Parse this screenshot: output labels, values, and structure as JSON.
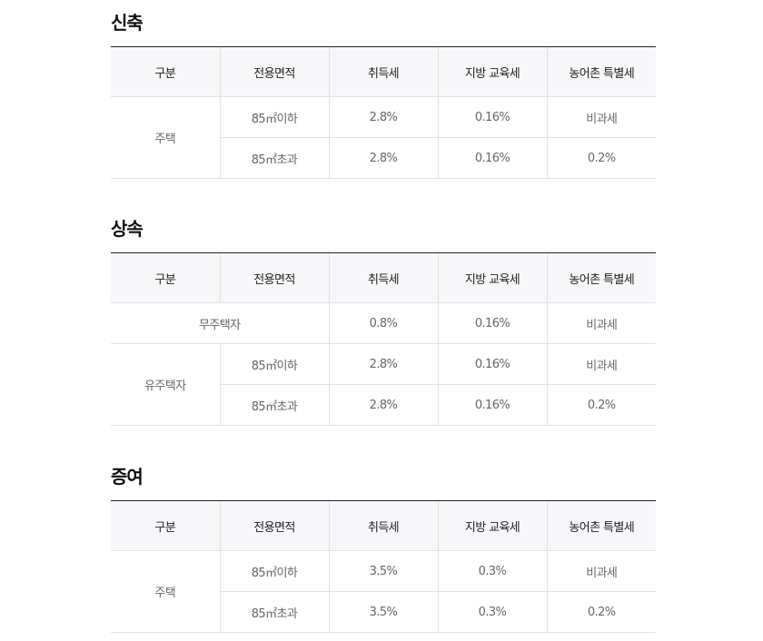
{
  "headers": [
    "구분",
    "전용면적",
    "취득세",
    "지방 교육세",
    "농어촌 특별세"
  ],
  "sections": [
    {
      "title": "신축",
      "group": "주택",
      "rows": [
        {
          "area": "85㎡이하",
          "acq": "2.8%",
          "edu": "0.16%",
          "rural": "비과세"
        },
        {
          "area": "85㎡초과",
          "acq": "2.8%",
          "edu": "0.16%",
          "rural": "0.2%"
        }
      ]
    },
    {
      "title": "상속",
      "no_house": {
        "label": "무주택자",
        "acq": "0.8%",
        "edu": "0.16%",
        "rural": "비과세"
      },
      "group": "유주택자",
      "rows": [
        {
          "area": "85㎡이하",
          "acq": "2.8%",
          "edu": "0.16%",
          "rural": "비과세"
        },
        {
          "area": "85㎡초과",
          "acq": "2.8%",
          "edu": "0.16%",
          "rural": "0.2%"
        }
      ]
    },
    {
      "title": "증여",
      "group": "주택",
      "rows": [
        {
          "area": "85㎡이하",
          "acq": "3.5%",
          "edu": "0.3%",
          "rural": "비과세"
        },
        {
          "area": "85㎡초과",
          "acq": "3.5%",
          "edu": "0.3%",
          "rural": "0.2%"
        }
      ]
    }
  ]
}
